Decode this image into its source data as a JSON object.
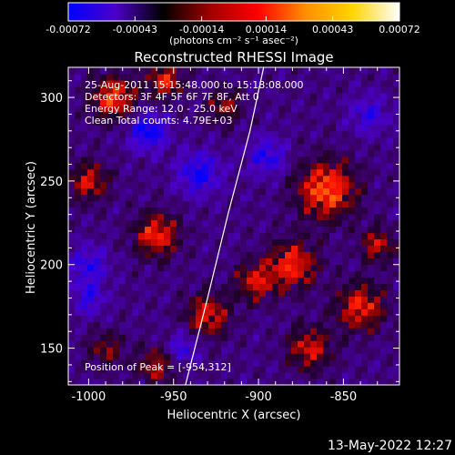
{
  "colorbar": {
    "ticks": [
      "-0.00072",
      "-0.00043",
      "-0.00014",
      "0.00014",
      "0.00043",
      "0.00072"
    ],
    "units_text": "(photons cm⁻² s⁻¹ asec⁻²)",
    "colors": [
      "#0000ff",
      "#4b00c8",
      "#000000",
      "#a00000",
      "#ff0000",
      "#ff8c00",
      "#ffd500",
      "#ffffff"
    ]
  },
  "plot": {
    "title": "Reconstructed RHESSI Image",
    "info_lines": [
      "25-Aug-2011 15:15:48.000 to 15:18:08.000",
      "Detectors: 3F 4F 5F 6F 7F 8F, Att 0",
      "Energy Range: 12.0 - 25.0 keV",
      "Clean     Total counts: 4.79E+03"
    ],
    "peak_text": "Position of Peak = [-954,312]",
    "xlabel": "Heliocentric X (arcsec)",
    "ylabel": "Heliocentric Y (arcsec)"
  },
  "footer": {
    "timestamp": "13-May-2022 12:27"
  },
  "chart_data": {
    "type": "heatmap",
    "title": "Reconstructed RHESSI Image",
    "xlabel": "Heliocentric X (arcsec)",
    "ylabel": "Heliocentric Y (arcsec)",
    "xlim": [
      -1012,
      -817
    ],
    "ylim": [
      128,
      318
    ],
    "xticks": [
      -1000,
      -950,
      -900,
      -850
    ],
    "yticks": [
      150,
      200,
      250,
      300
    ],
    "colorbar_range": [
      -0.00072,
      0.00072
    ],
    "colorbar_ticks": [
      -0.00072,
      -0.00043,
      -0.00014,
      0.00014,
      0.00043,
      0.00072
    ],
    "limb_curve": [
      [
        -943,
        128
      ],
      [
        -930,
        180
      ],
      [
        -918,
        230
      ],
      [
        -905,
        280
      ],
      [
        -897,
        318
      ]
    ],
    "peak": [
      -954,
      312
    ],
    "blobs": [
      {
        "x": -860,
        "y": 245,
        "v": 1.0,
        "s": 12
      },
      {
        "x": -880,
        "y": 200,
        "v": 0.85,
        "s": 10
      },
      {
        "x": -902,
        "y": 190,
        "v": 0.7,
        "s": 8
      },
      {
        "x": -840,
        "y": 175,
        "v": 0.8,
        "s": 10
      },
      {
        "x": -930,
        "y": 170,
        "v": 0.75,
        "s": 9
      },
      {
        "x": -985,
        "y": 300,
        "v": 0.9,
        "s": 9
      },
      {
        "x": -955,
        "y": 310,
        "v": 0.8,
        "s": 7
      },
      {
        "x": -960,
        "y": 218,
        "v": 0.85,
        "s": 9
      },
      {
        "x": -1000,
        "y": 250,
        "v": 0.7,
        "s": 8
      },
      {
        "x": -830,
        "y": 212,
        "v": 0.65,
        "s": 7
      },
      {
        "x": -870,
        "y": 150,
        "v": 0.7,
        "s": 9
      },
      {
        "x": -960,
        "y": 140,
        "v": 0.6,
        "s": 8
      },
      {
        "x": -920,
        "y": 295,
        "v": 0.55,
        "s": 7
      },
      {
        "x": -990,
        "y": 150,
        "v": 0.5,
        "s": 7
      },
      {
        "x": -965,
        "y": 280,
        "v": -0.8,
        "s": 8
      },
      {
        "x": -1000,
        "y": 200,
        "v": -0.55,
        "s": 8
      },
      {
        "x": -935,
        "y": 255,
        "v": -0.7,
        "s": 9
      },
      {
        "x": -895,
        "y": 265,
        "v": -0.6,
        "s": 8
      },
      {
        "x": -1000,
        "y": 180,
        "v": -0.5,
        "s": 7
      },
      {
        "x": -945,
        "y": 150,
        "v": -0.5,
        "s": 7
      },
      {
        "x": -835,
        "y": 290,
        "v": -0.5,
        "s": 8
      }
    ]
  }
}
